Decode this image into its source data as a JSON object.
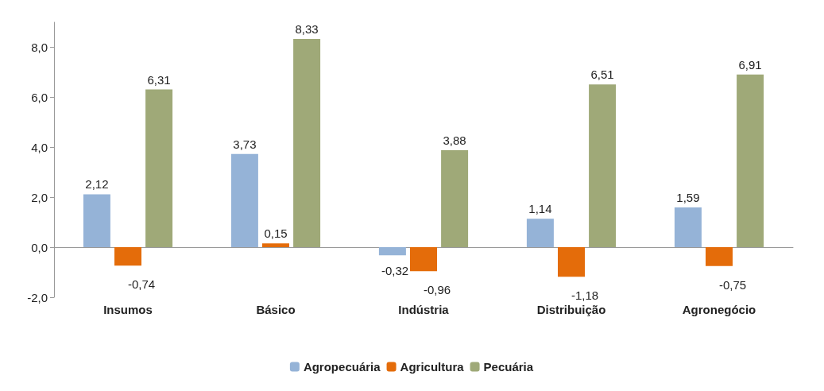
{
  "chart_data": {
    "type": "bar",
    "categories": [
      "Insumos",
      "Básico",
      "Indústria",
      "Distribuição",
      "Agronegócio"
    ],
    "series": [
      {
        "name": "Agropecuária",
        "color": "#95b3d7",
        "values": [
          2.12,
          3.73,
          -0.32,
          1.14,
          1.59
        ],
        "value_labels": [
          "2,12",
          "3,73",
          "-0,32",
          "1,14",
          "1,59"
        ]
      },
      {
        "name": "Agricultura",
        "color": "#e46c0a",
        "values": [
          -0.74,
          0.15,
          -0.96,
          -1.18,
          -0.75
        ],
        "value_labels": [
          "-0,74",
          "0,15",
          "-0,96",
          "-1,18",
          "-0,75"
        ]
      },
      {
        "name": "Pecuária",
        "color": "#9fa978",
        "values": [
          6.31,
          8.33,
          3.88,
          6.51,
          6.91
        ],
        "value_labels": [
          "6,31",
          "8,33",
          "3,88",
          "6,51",
          "6,91"
        ]
      }
    ],
    "ylim": [
      -2,
      9
    ],
    "yticks": [
      {
        "value": -2,
        "label": "-2,0"
      },
      {
        "value": 0,
        "label": "0,0"
      },
      {
        "value": 2,
        "label": "2,0"
      },
      {
        "value": 4,
        "label": "4,0"
      },
      {
        "value": 6,
        "label": "6,0"
      },
      {
        "value": 8,
        "label": "8,0"
      }
    ],
    "legend": "bottom"
  }
}
